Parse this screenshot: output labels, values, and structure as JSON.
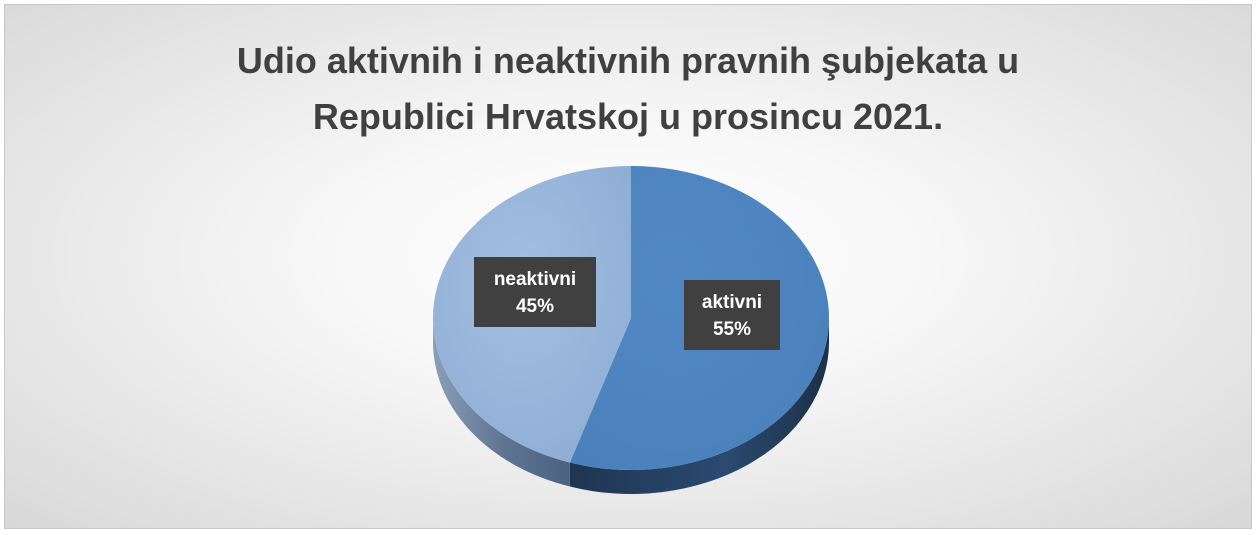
{
  "chart_data": {
    "type": "pie",
    "title_lines": [
      "Udio aktivnih i neaktivnih pravnih şubjekata u",
      "Republici Hrvatskoj u prosincu 2021."
    ],
    "slices": [
      {
        "label": "aktivni",
        "value": 55,
        "percent_label": "55%",
        "color": "#4f81bd"
      },
      {
        "label": "neaktivni",
        "value": 45,
        "percent_label": "45%",
        "color": "#95b3d7"
      }
    ],
    "style": "3d"
  }
}
